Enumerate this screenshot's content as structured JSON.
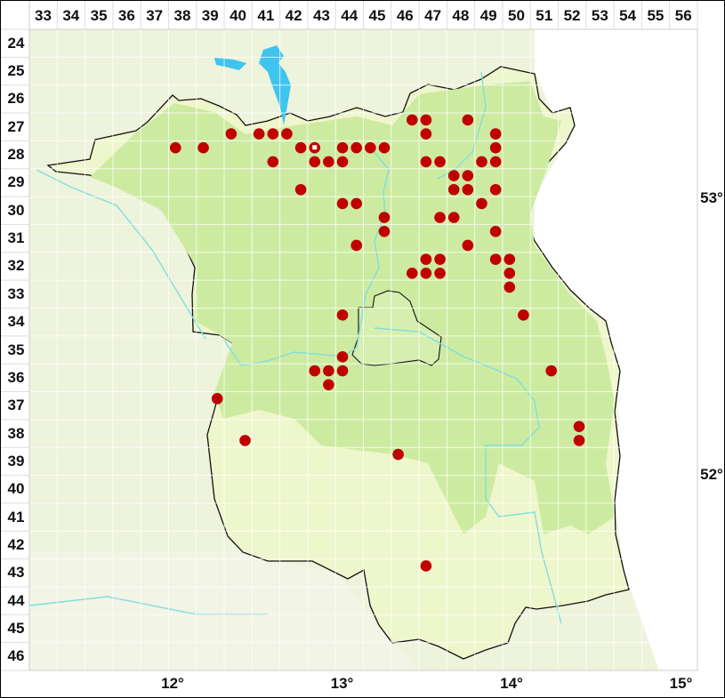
{
  "map": {
    "columns": [
      "33",
      "34",
      "35",
      "36",
      "37",
      "38",
      "39",
      "40",
      "41",
      "42",
      "43",
      "44",
      "45",
      "46",
      "47",
      "48",
      "49",
      "50",
      "51",
      "52",
      "53",
      "54",
      "55",
      "56"
    ],
    "rows": [
      "24",
      "25",
      "26",
      "27",
      "28",
      "29",
      "30",
      "31",
      "32",
      "33",
      "34",
      "35",
      "36",
      "37",
      "38",
      "39",
      "40",
      "41",
      "42",
      "43",
      "44",
      "45",
      "46"
    ],
    "longitude_labels": [
      {
        "text": "12°",
        "lon": 12
      },
      {
        "text": "13°",
        "lon": 13
      },
      {
        "text": "14°",
        "lon": 14
      },
      {
        "text": "15°",
        "lon": 15
      }
    ],
    "latitude_labels": [
      {
        "text": "53°",
        "lat": 53
      },
      {
        "text": "52°",
        "lat": 52
      }
    ],
    "colors": {
      "dot": "#c00000",
      "region_light": "#eef6cc",
      "region_dark": "#cdeba0",
      "outside_west": "#eef3dc",
      "outside_east": "#ffffff",
      "river": "#7fdede",
      "lake": "#3fc4f0",
      "border": "#111111"
    },
    "records": [
      {
        "col": 46,
        "row": 27,
        "q": 2
      },
      {
        "col": 47,
        "row": 27,
        "q": 1
      },
      {
        "col": 48,
        "row": 27,
        "q": 2
      },
      {
        "col": 40,
        "row": 27,
        "q": 3
      },
      {
        "col": 41,
        "row": 27,
        "q": 3
      },
      {
        "col": 41,
        "row": 27,
        "q": 4
      },
      {
        "col": 42,
        "row": 27,
        "q": 3
      },
      {
        "col": 47,
        "row": 27,
        "q": 3
      },
      {
        "col": 49,
        "row": 27,
        "q": 4
      },
      {
        "col": 38,
        "row": 28,
        "q": 1
      },
      {
        "col": 39,
        "row": 28,
        "q": 1
      },
      {
        "col": 42,
        "row": 28,
        "q": 2
      },
      {
        "col": 43,
        "row": 28,
        "q": 1,
        "hollow": true
      },
      {
        "col": 44,
        "row": 28,
        "q": 1
      },
      {
        "col": 44,
        "row": 28,
        "q": 2
      },
      {
        "col": 45,
        "row": 28,
        "q": 1
      },
      {
        "col": 45,
        "row": 28,
        "q": 2
      },
      {
        "col": 49,
        "row": 28,
        "q": 2
      },
      {
        "col": 41,
        "row": 28,
        "q": 4
      },
      {
        "col": 43,
        "row": 28,
        "q": 3
      },
      {
        "col": 43,
        "row": 28,
        "q": 4
      },
      {
        "col": 44,
        "row": 28,
        "q": 3
      },
      {
        "col": 47,
        "row": 28,
        "q": 3
      },
      {
        "col": 47,
        "row": 28,
        "q": 4
      },
      {
        "col": 49,
        "row": 28,
        "q": 3
      },
      {
        "col": 49,
        "row": 28,
        "q": 4
      },
      {
        "col": 48,
        "row": 29,
        "q": 1
      },
      {
        "col": 48,
        "row": 29,
        "q": 2
      },
      {
        "col": 42,
        "row": 29,
        "q": 4
      },
      {
        "col": 48,
        "row": 29,
        "q": 3
      },
      {
        "col": 48,
        "row": 29,
        "q": 4
      },
      {
        "col": 49,
        "row": 29,
        "q": 4
      },
      {
        "col": 44,
        "row": 30,
        "q": 1
      },
      {
        "col": 44,
        "row": 30,
        "q": 2
      },
      {
        "col": 49,
        "row": 30,
        "q": 1
      },
      {
        "col": 45,
        "row": 30,
        "q": 4
      },
      {
        "col": 47,
        "row": 30,
        "q": 4
      },
      {
        "col": 48,
        "row": 30,
        "q": 3
      },
      {
        "col": 45,
        "row": 31,
        "q": 2
      },
      {
        "col": 49,
        "row": 31,
        "q": 2
      },
      {
        "col": 44,
        "row": 31,
        "q": 4
      },
      {
        "col": 48,
        "row": 31,
        "q": 4
      },
      {
        "col": 47,
        "row": 32,
        "q": 1
      },
      {
        "col": 47,
        "row": 32,
        "q": 2
      },
      {
        "col": 49,
        "row": 32,
        "q": 2
      },
      {
        "col": 50,
        "row": 32,
        "q": 1
      },
      {
        "col": 46,
        "row": 32,
        "q": 4
      },
      {
        "col": 47,
        "row": 32,
        "q": 3
      },
      {
        "col": 47,
        "row": 32,
        "q": 4
      },
      {
        "col": 50,
        "row": 32,
        "q": 3
      },
      {
        "col": 50,
        "row": 33,
        "q": 1
      },
      {
        "col": 44,
        "row": 34,
        "q": 1
      },
      {
        "col": 50,
        "row": 34,
        "q": 2
      },
      {
        "col": 44,
        "row": 35,
        "q": 3
      },
      {
        "col": 43,
        "row": 36,
        "q": 1
      },
      {
        "col": 43,
        "row": 36,
        "q": 2
      },
      {
        "col": 44,
        "row": 36,
        "q": 1
      },
      {
        "col": 51,
        "row": 36,
        "q": 2
      },
      {
        "col": 43,
        "row": 36,
        "q": 4
      },
      {
        "col": 39,
        "row": 37,
        "q": 2
      },
      {
        "col": 52,
        "row": 38,
        "q": 2
      },
      {
        "col": 40,
        "row": 38,
        "q": 4
      },
      {
        "col": 52,
        "row": 38,
        "q": 4
      },
      {
        "col": 46,
        "row": 39,
        "q": 1
      },
      {
        "col": 47,
        "row": 43,
        "q": 1
      }
    ]
  }
}
